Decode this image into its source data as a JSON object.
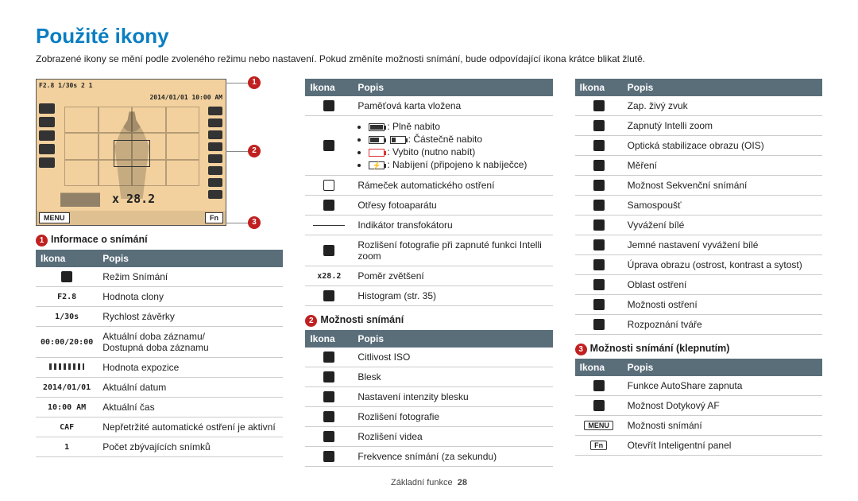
{
  "title": "Použité ikony",
  "intro": "Zobrazené ikony se mění podle zvoleného režimu nebo nastavení. Pokud změníte možnosti snímání, bude odpovídající ikona krátce blikat žlutě.",
  "header_icon": "Ikona",
  "header_desc": "Popis",
  "preview": {
    "topline": "F2.8 1/30s         2     1",
    "dateline": "2014/01/01 10:00 AM",
    "zoom": "x 28.2",
    "menu": "MENU",
    "fn": "Fn"
  },
  "sections": {
    "s1": "Informace o snímání",
    "s2": "Možnosti snímání",
    "s3": "Možnosti snímání (klepnutím)"
  },
  "col1": [
    {
      "icon_type": "sq",
      "label": "",
      "desc": "Režim Snímání"
    },
    {
      "icon_type": "text",
      "label": "F2.8",
      "desc": "Hodnota clony"
    },
    {
      "icon_type": "text",
      "label": "1/30s",
      "desc": "Rychlost závěrky"
    },
    {
      "icon_type": "text",
      "label": "00:00/20:00",
      "desc": "Aktuální doba záznamu/\nDostupná doba záznamu"
    },
    {
      "icon_type": "bar",
      "label": "",
      "desc": "Hodnota expozice"
    },
    {
      "icon_type": "text",
      "label": "2014/01/01",
      "desc": "Aktuální datum"
    },
    {
      "icon_type": "text",
      "label": "10:00 AM",
      "desc": "Aktuální čas"
    },
    {
      "icon_type": "text",
      "label": "CAF",
      "desc": "Nepřetržité automatické ostření je aktivní"
    },
    {
      "icon_type": "text",
      "label": "1",
      "desc": "Počet zbývajících snímků"
    }
  ],
  "col2a": [
    {
      "icon_type": "sq",
      "label": "",
      "desc": "Paměťová karta vložena"
    },
    {
      "icon_type": "battery",
      "label": "",
      "desc": "__battery__"
    },
    {
      "icon_type": "sqo",
      "label": "",
      "desc": "Rámeček automatického ostření"
    },
    {
      "icon_type": "sq",
      "label": "",
      "desc": "Otřesy fotoaparátu"
    },
    {
      "icon_type": "line",
      "label": "",
      "desc": "Indikátor transfokátoru"
    },
    {
      "icon_type": "sq",
      "label": "",
      "desc": "Rozlišení fotografie při zapnuté funkci Intelli zoom"
    },
    {
      "icon_type": "text",
      "label": "x28.2",
      "desc": "Poměr zvětšení"
    },
    {
      "icon_type": "sq",
      "label": "",
      "desc": "Histogram (str. 35)"
    }
  ],
  "battery": {
    "full": "Plně nabito",
    "partial": "Částečně nabito",
    "empty": "Vybito (nutno nabít)",
    "charging": "Nabíjení (připojeno k nabíječce)"
  },
  "col2b": [
    {
      "icon_type": "sq",
      "label": "",
      "desc": "Citlivost ISO"
    },
    {
      "icon_type": "sq",
      "label": "",
      "desc": "Blesk"
    },
    {
      "icon_type": "sq",
      "label": "",
      "desc": "Nastavení intenzity blesku"
    },
    {
      "icon_type": "sq",
      "label": "",
      "desc": "Rozlišení fotografie"
    },
    {
      "icon_type": "sq",
      "label": "",
      "desc": "Rozlišení videa"
    },
    {
      "icon_type": "sq",
      "label": "",
      "desc": "Frekvence snímání (za sekundu)"
    }
  ],
  "col3a": [
    {
      "icon_type": "sq",
      "label": "",
      "desc": "Zap. živý zvuk"
    },
    {
      "icon_type": "sq",
      "label": "",
      "desc": "Zapnutý Intelli zoom"
    },
    {
      "icon_type": "sq",
      "label": "",
      "desc": "Optická stabilizace obrazu (OIS)"
    },
    {
      "icon_type": "sq",
      "label": "",
      "desc": "Měření"
    },
    {
      "icon_type": "sq",
      "label": "",
      "desc": "Možnost Sekvenční snímání"
    },
    {
      "icon_type": "sq",
      "label": "",
      "desc": "Samospoušť"
    },
    {
      "icon_type": "sq",
      "label": "",
      "desc": "Vyvážení bílé"
    },
    {
      "icon_type": "sq",
      "label": "",
      "desc": "Jemné nastavení vyvážení bílé"
    },
    {
      "icon_type": "sq",
      "label": "",
      "desc": "Úprava obrazu (ostrost, kontrast a sytost)"
    },
    {
      "icon_type": "sq",
      "label": "",
      "desc": "Oblast ostření"
    },
    {
      "icon_type": "sq",
      "label": "",
      "desc": "Možnosti ostření"
    },
    {
      "icon_type": "sq",
      "label": "",
      "desc": "Rozpoznání tváře"
    }
  ],
  "col3b": [
    {
      "icon_type": "sq",
      "label": "",
      "desc": "Funkce AutoShare zapnuta"
    },
    {
      "icon_type": "sq",
      "label": "",
      "desc": "Možnost Dotykový AF"
    },
    {
      "icon_type": "key",
      "label": "MENU",
      "desc": "Možnosti snímání"
    },
    {
      "icon_type": "key",
      "label": "Fn",
      "desc": "Otevřít Inteligentní panel"
    }
  ],
  "footer": {
    "label": "Základní funkce",
    "page": "28"
  }
}
